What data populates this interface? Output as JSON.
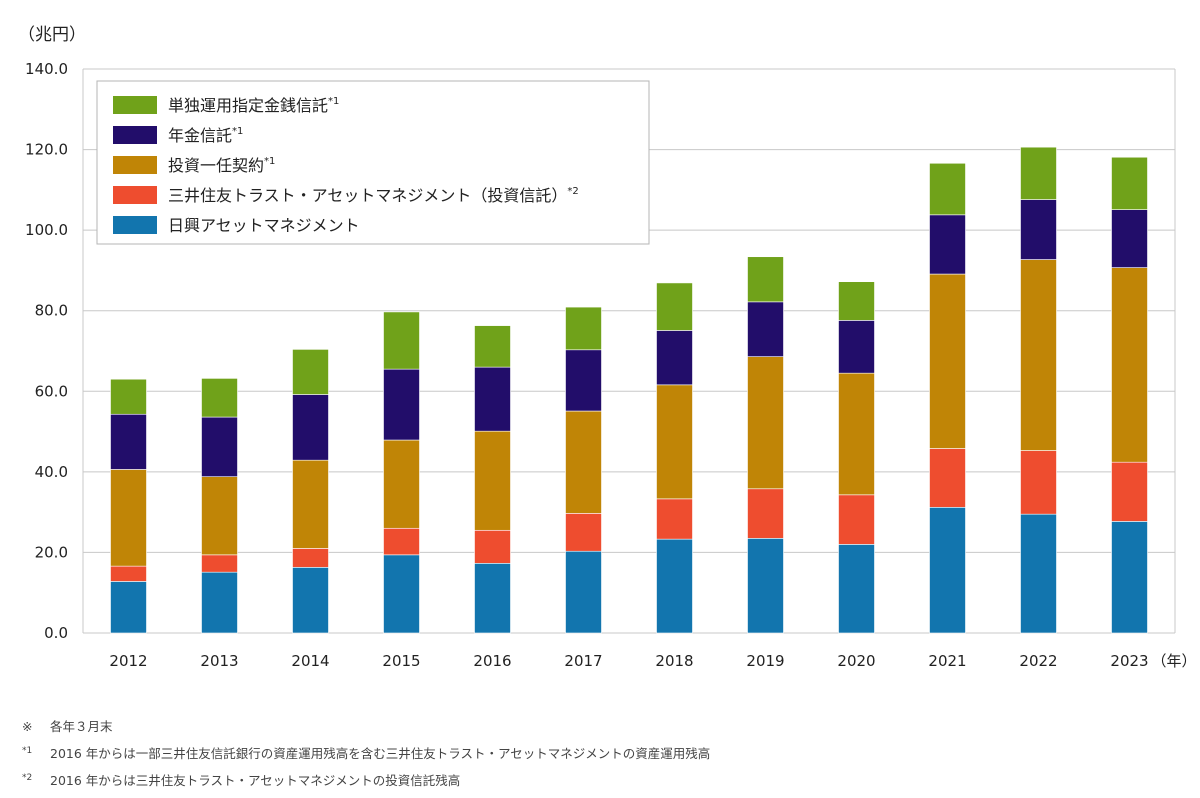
{
  "unit_label": "（兆円）",
  "chart_data": {
    "type": "bar",
    "stacked": true,
    "categories": [
      "2012",
      "2013",
      "2014",
      "2015",
      "2016",
      "2017",
      "2018",
      "2019",
      "2020",
      "2021",
      "2022",
      "2023"
    ],
    "x_suffix": "（年）",
    "ylim": [
      0,
      140
    ],
    "yticks": [
      "0.0",
      "20.0",
      "40.0",
      "60.0",
      "80.0",
      "100.0",
      "120.0",
      "140.0"
    ],
    "grid": true,
    "legend_position": "top-left",
    "series": [
      {
        "name": "日興アセットマネジメント",
        "sup": "",
        "color": "#1275ae",
        "values": [
          12.8,
          15.1,
          16.3,
          19.4,
          17.3,
          20.3,
          23.3,
          23.5,
          22.0,
          31.2,
          29.5,
          27.7
        ]
      },
      {
        "name": "三井住友トラスト・アセットマネジメント（投資信託）",
        "sup": "*2",
        "color": "#ee4d2f",
        "values": [
          3.8,
          4.3,
          4.7,
          6.6,
          8.2,
          9.4,
          10.0,
          12.3,
          12.3,
          14.6,
          15.8,
          14.7
        ]
      },
      {
        "name": "投資一任契約",
        "sup": "*1",
        "color": "#c08506",
        "values": [
          24.0,
          19.4,
          21.9,
          21.9,
          24.6,
          25.4,
          28.3,
          32.8,
          30.2,
          43.3,
          47.4,
          48.3
        ]
      },
      {
        "name": "年金信託",
        "sup": "*1",
        "color": "#220d6a",
        "values": [
          13.7,
          14.8,
          16.3,
          17.6,
          15.9,
          15.2,
          13.5,
          13.6,
          13.1,
          14.7,
          14.9,
          14.4
        ]
      },
      {
        "name": "単独運用指定金銭信託",
        "sup": "*1",
        "color": "#70a21a",
        "values": [
          8.7,
          9.6,
          11.2,
          14.2,
          10.3,
          10.6,
          11.8,
          11.2,
          9.6,
          12.8,
          13.0,
          13.0
        ]
      }
    ]
  },
  "notes": [
    {
      "mark": "※",
      "sup": "",
      "text": "各年３月末"
    },
    {
      "mark": "",
      "sup": "*1",
      "text": "2016 年からは一部三井住友信託銀行の資産運用残高を含む三井住友トラスト・アセットマネジメントの資産運用残高"
    },
    {
      "mark": "",
      "sup": "*2",
      "text": "2016 年からは三井住友トラスト・アセットマネジメントの投資信託残高"
    }
  ]
}
